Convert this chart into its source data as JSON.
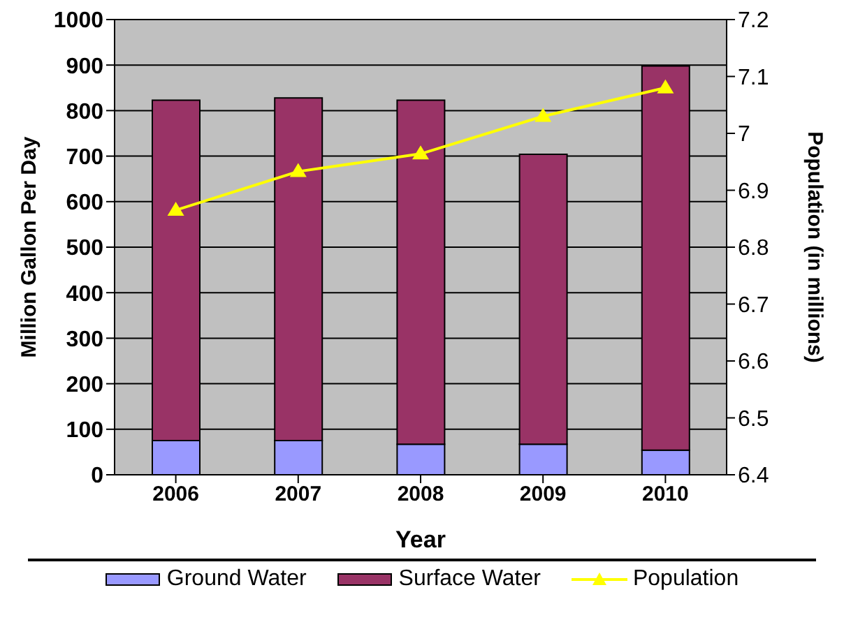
{
  "chart_data": {
    "type": "bar",
    "categories": [
      "2006",
      "2007",
      "2008",
      "2009",
      "2010"
    ],
    "xlabel": "Year",
    "ylabel": "Million Gallon Per Day",
    "y2label": "Population (in millions)",
    "stacked": true,
    "series": [
      {
        "name": "Ground Water",
        "color": "#9999ff",
        "values": [
          75,
          75,
          67,
          67,
          54
        ]
      },
      {
        "name": "Surface Water",
        "color": "#993366",
        "values": [
          748,
          753,
          756,
          637,
          844
        ]
      },
      {
        "name": "Population",
        "type": "line",
        "axis": "y2",
        "color": "#ffff00",
        "marker": "triangle",
        "values": [
          6.865,
          6.933,
          6.964,
          7.03,
          7.08
        ]
      }
    ],
    "ylim": [
      0,
      1000
    ],
    "yticks": [
      0,
      100,
      200,
      300,
      400,
      500,
      600,
      700,
      800,
      900,
      1000
    ],
    "y2lim": [
      6.4,
      7.2
    ],
    "y2ticks": [
      6.4,
      6.5,
      6.6,
      6.7,
      6.8,
      6.9,
      7,
      7.1,
      7.2
    ],
    "grid": "y",
    "legend": "bottom"
  }
}
